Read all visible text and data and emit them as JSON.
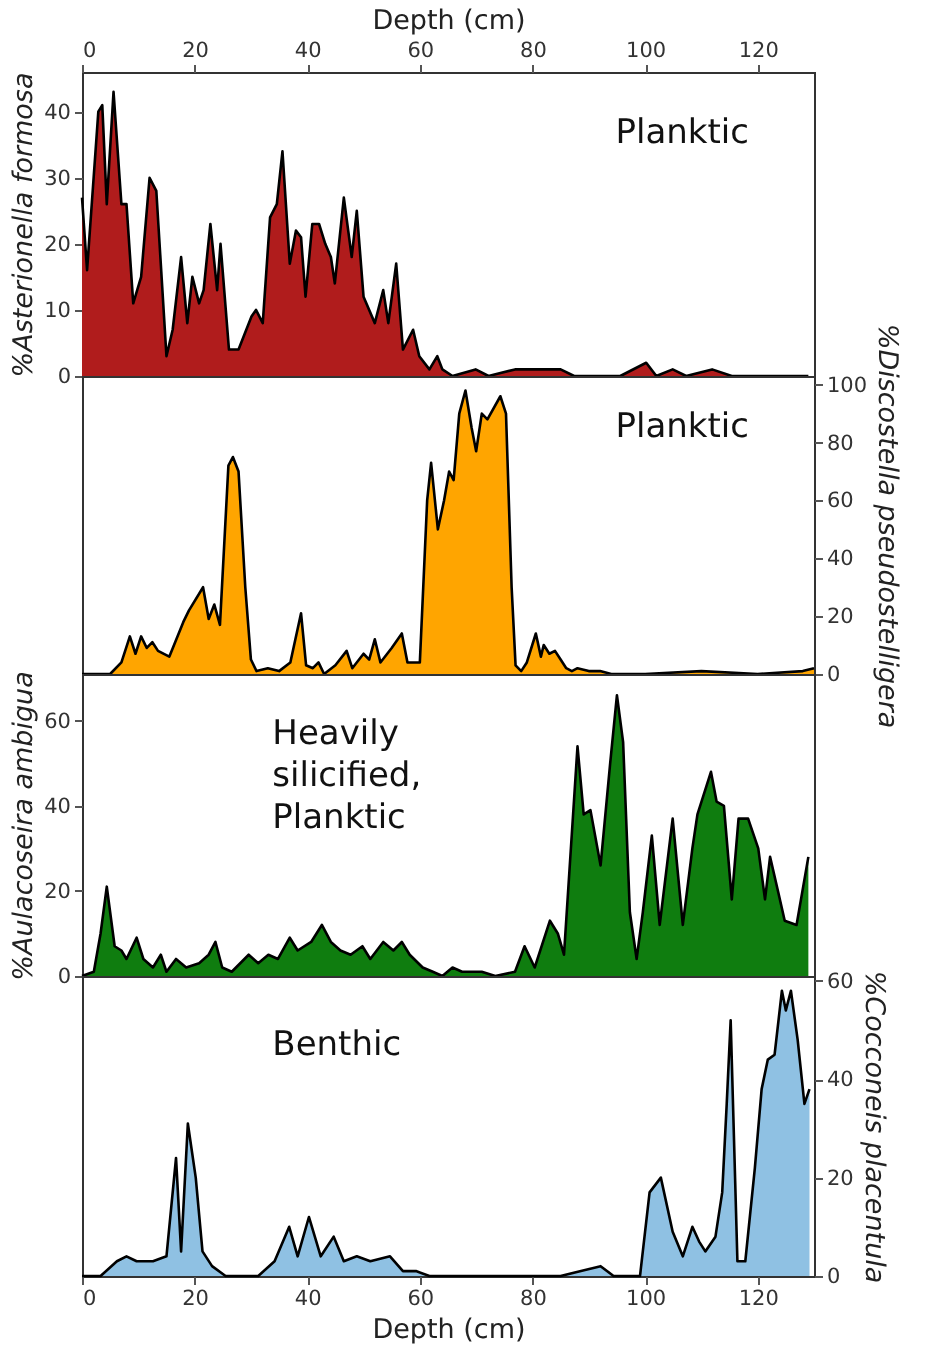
{
  "chart_data": [
    {
      "type": "area",
      "xlabel": "Depth (cm)",
      "ylabel": "%Asterionella formosa",
      "xlim": [
        0,
        130
      ],
      "xticks": [
        0,
        20,
        40,
        60,
        80,
        100,
        120
      ],
      "ylim": [
        0,
        46
      ],
      "yticks": [
        0,
        10,
        20,
        30,
        40
      ],
      "annotations": [
        "Planktic"
      ],
      "series": [
        {
          "color": "#b01c1c",
          "x": [
            0,
            0.9,
            2.9,
            3.6,
            4.4,
            5.6,
            7.0,
            7.9,
            9.1,
            10.5,
            12.0,
            13.2,
            15.0,
            16.1,
            17.6,
            18.7,
            19.6,
            20.8,
            21.6,
            22.8,
            24.0,
            24.6,
            26.1,
            27.8,
            30.1,
            30.9,
            32.1,
            33.4,
            34.6,
            35.6,
            36.9,
            38.0,
            38.9,
            39.7,
            40.9,
            42.1,
            43.2,
            44.2,
            44.9,
            46.5,
            47.9,
            48.8,
            50.0,
            52.0,
            53.5,
            54.4,
            55.8,
            57.0,
            58.8,
            59.9,
            61.7,
            63.1,
            64.0,
            65.8,
            69.9,
            72.2,
            76.9,
            80.4,
            85.0,
            87.4,
            95.6,
            100.2,
            102.0,
            104.9,
            107.3,
            111.9,
            115.4,
            129
          ],
          "values": [
            27,
            16,
            40,
            41,
            26,
            43,
            26,
            26,
            11,
            15,
            30,
            28,
            3,
            7,
            18,
            8,
            15,
            11,
            13,
            23,
            13,
            20,
            4,
            4,
            9,
            10,
            8,
            24,
            26,
            34,
            17,
            22,
            21,
            12,
            23,
            23,
            20,
            18,
            14,
            27,
            18,
            25,
            12,
            8,
            13,
            8,
            17,
            4,
            7,
            3,
            1,
            3,
            1,
            0,
            1,
            0,
            1,
            1,
            1,
            0,
            0,
            2,
            0,
            1,
            0,
            1,
            0,
            0
          ]
        }
      ]
    },
    {
      "type": "area",
      "y2label": "%Discostella pseudostelligera",
      "xlim": [
        0,
        130
      ],
      "y2lim": [
        0,
        103
      ],
      "y2ticks": [
        0,
        20,
        40,
        60,
        80,
        100
      ],
      "tick_labels": "y",
      "annotations": [
        "Planktic"
      ],
      "series": [
        {
          "color": "#ffa500",
          "axis": "y2",
          "x": [
            0,
            5,
            7,
            8.5,
            9.5,
            10.5,
            11.5,
            12.5,
            13.5,
            15.5,
            18,
            19,
            21.5,
            22.5,
            23.5,
            24.5,
            26,
            26.8,
            27.8,
            29,
            30,
            31,
            33,
            35,
            37,
            38.9,
            39.8,
            41,
            42,
            43,
            45,
            47,
            48,
            50,
            51,
            52,
            53,
            55,
            56.8,
            57.8,
            60,
            61.3,
            62,
            63.2,
            64.3,
            65.2,
            66,
            67,
            68.1,
            69.2,
            70,
            71,
            72,
            74.3,
            75.3,
            76.3,
            77,
            78,
            79,
            80.6,
            81.5,
            82,
            83,
            84,
            85,
            86,
            87,
            88,
            90,
            92,
            94,
            100,
            110,
            120,
            128,
            130
          ],
          "values": [
            0,
            0,
            4,
            13,
            7,
            13,
            9,
            11,
            8,
            6,
            18,
            22,
            30,
            19,
            24,
            17,
            72,
            75,
            70,
            30,
            5,
            1,
            2,
            1,
            4,
            21,
            3,
            2,
            4,
            0,
            3,
            8,
            2,
            7,
            5,
            12,
            4,
            9,
            14,
            4,
            4,
            60,
            73,
            50,
            60,
            70,
            67,
            90,
            98,
            85,
            77,
            90,
            88,
            96,
            90,
            30,
            3,
            1,
            4,
            14,
            6,
            10,
            7,
            8,
            5,
            2,
            1,
            2,
            1,
            1,
            0,
            0,
            1,
            0,
            1,
            2
          ]
        }
      ]
    },
    {
      "type": "area",
      "ylabel": "%Aulacoseira ambigua",
      "xlim": [
        0,
        130
      ],
      "ylim": [
        0,
        71
      ],
      "yticks": [
        0,
        20,
        40,
        60
      ],
      "tick_labels": "y",
      "annotations": [
        "Heavily silicified, Planktic"
      ],
      "series": [
        {
          "color": "#0f7d0f",
          "x": [
            0,
            2.1,
            3.3,
            4.4,
            5.8,
            7.0,
            7.9,
            9.7,
            10.9,
            12.6,
            14.0,
            15.0,
            16.7,
            18.5,
            20.8,
            22.5,
            23.7,
            24.9,
            26.6,
            29.6,
            31.3,
            33.1,
            34.8,
            36.9,
            38.3,
            40.7,
            42.6,
            44.2,
            45.9,
            47.7,
            49.8,
            51.2,
            53.5,
            55.3,
            56.8,
            58.2,
            60.5,
            62.3,
            64.0,
            65.8,
            67.5,
            71.0,
            73.4,
            76.9,
            78.6,
            80.4,
            83.1,
            84.5,
            85.6,
            88.0,
            89.1,
            90.3,
            92.1,
            93.8,
            95.0,
            96.1,
            97.3,
            98.5,
            99.6,
            101.2,
            102.6,
            104.9,
            106.7,
            108.4,
            109.3,
            111.7,
            112.7,
            114.0,
            115.4,
            116.6,
            118.3,
            120.1,
            121.3,
            122.2,
            123.6,
            124.8,
            126.9,
            129
          ],
          "values": [
            0,
            1,
            10,
            21,
            7,
            6,
            4,
            9,
            4,
            2,
            5,
            1,
            4,
            2,
            3,
            5,
            8,
            2,
            1,
            5,
            3,
            5,
            4,
            9,
            6,
            8,
            12,
            8,
            6,
            5,
            7,
            4,
            8,
            6,
            8,
            5,
            2,
            1,
            0,
            2,
            1,
            1,
            0,
            1,
            7,
            2,
            13,
            10,
            5,
            54,
            38,
            39,
            26,
            50,
            66,
            55,
            15,
            4,
            15,
            33,
            12,
            37,
            12,
            30,
            38,
            48,
            41,
            40,
            18,
            37,
            37,
            30,
            18,
            28,
            20,
            13,
            12,
            28
          ]
        }
      ]
    },
    {
      "type": "area",
      "xlabel": "Depth (cm)",
      "y2label": "%Cocconeis placentula",
      "xlim": [
        0,
        130
      ],
      "xticks": [
        0,
        20,
        40,
        60,
        80,
        100,
        120
      ],
      "y2lim": [
        0,
        61
      ],
      "y2ticks": [
        0,
        20,
        40,
        60
      ],
      "annotations": [
        "Benthic"
      ],
      "series": [
        {
          "color": "#8fc1e3",
          "axis": "y2",
          "x": [
            0,
            3.3,
            6.2,
            7.9,
            9.7,
            12.6,
            15.0,
            16.7,
            17.6,
            18.8,
            20.2,
            21.4,
            23.1,
            25.5,
            31.3,
            34.2,
            36.8,
            38.3,
            40.3,
            42.4,
            44.7,
            46.5,
            48.8,
            51.2,
            54.7,
            57.0,
            59.3,
            61.7,
            73.4,
            85.0,
            92.1,
            94.4,
            99.1,
            100.8,
            102.8,
            104.9,
            106.7,
            108.4,
            109.6,
            110.7,
            112.5,
            113.7,
            114.5,
            115.2,
            116.4,
            117.8,
            119.5,
            120.7,
            121.8,
            123.0,
            124.3,
            125.0,
            125.9,
            127.1,
            128.3,
            129.2
          ],
          "values": [
            0,
            0,
            3,
            4,
            3,
            3,
            4,
            24,
            5,
            31,
            20,
            5,
            2,
            0,
            0,
            3,
            10,
            4,
            12,
            4,
            8,
            3,
            4,
            3,
            4,
            1,
            1,
            0,
            0,
            0,
            2,
            0,
            0,
            17,
            20,
            9,
            4,
            10,
            7,
            5,
            8,
            17,
            35,
            52,
            3,
            3,
            22,
            38,
            44,
            45,
            58,
            54,
            58,
            48,
            35,
            38
          ]
        }
      ]
    }
  ]
}
